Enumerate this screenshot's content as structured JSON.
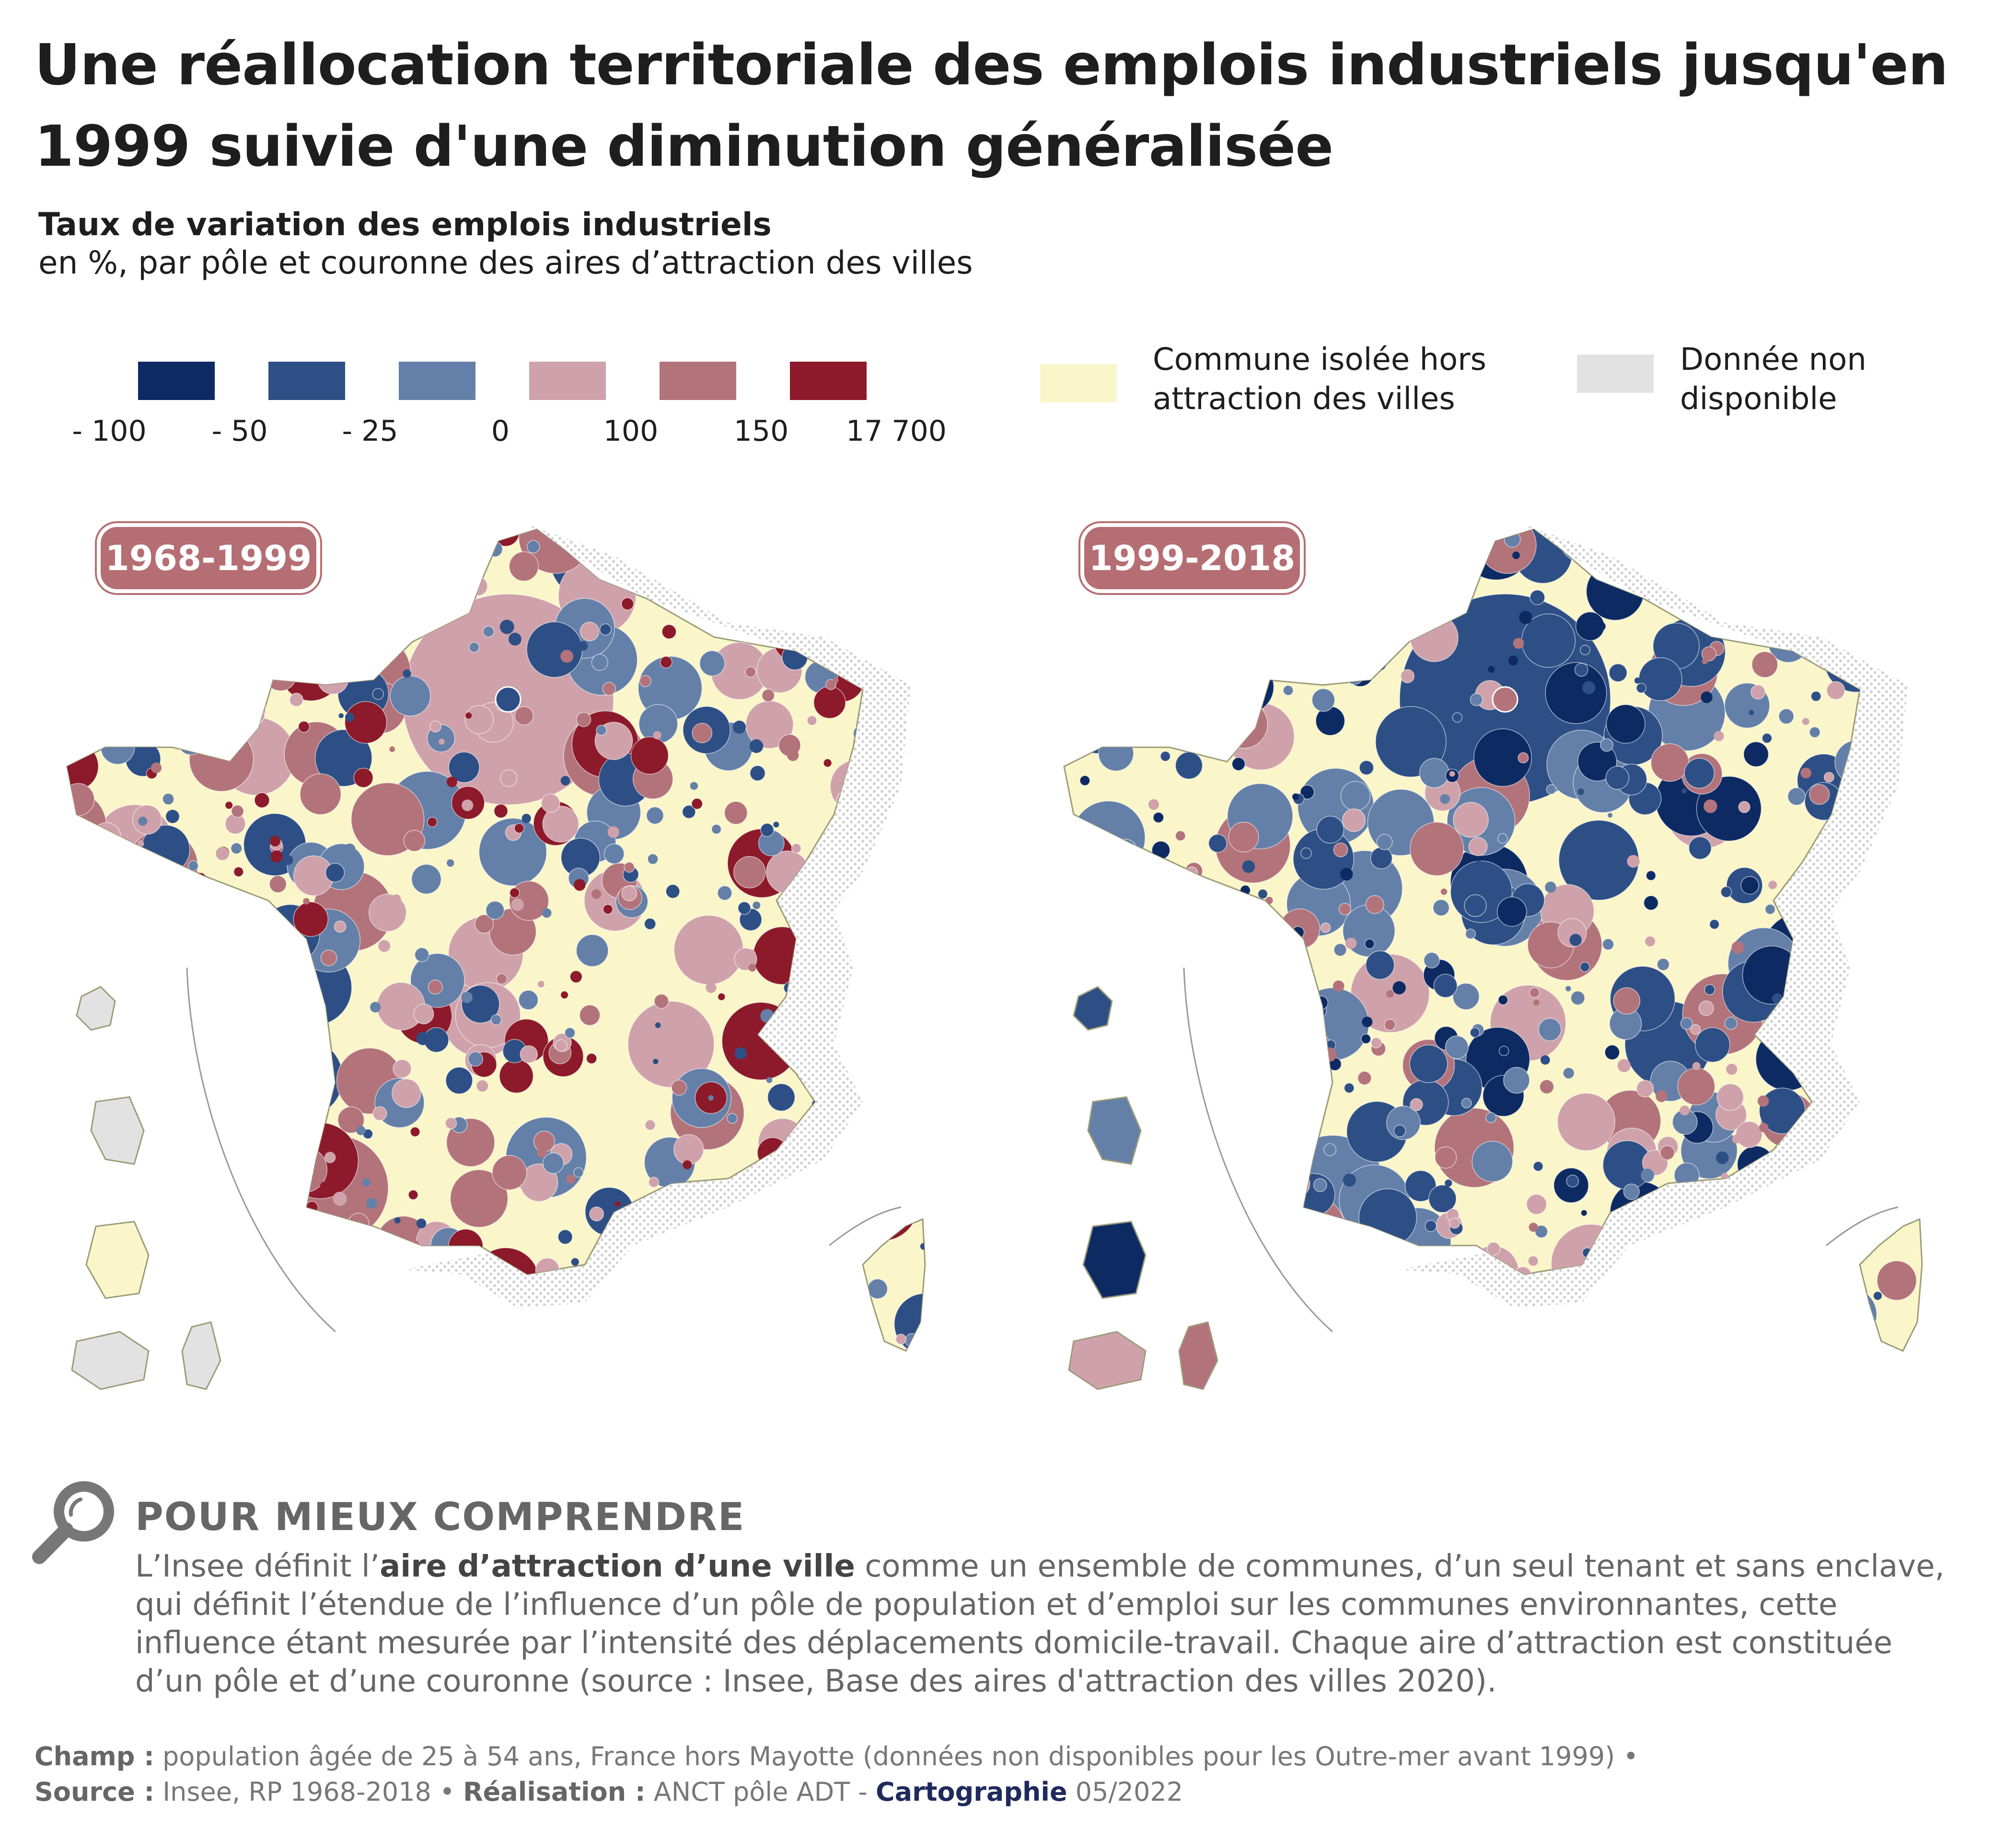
{
  "title": "Une réallocation territoriale des emplois industriels jusqu'en 1999 suivie d'une diminution généralisée",
  "subtitle_bold": "Taux de variation des emplois industriels",
  "subtitle": "en %, par pôle et couronne des aires d’attraction des villes",
  "legend": {
    "classes": [
      {
        "color": "#0d2a63"
      },
      {
        "color": "#2e4f85"
      },
      {
        "color": "#6480a8"
      },
      {
        "color": "#cfa2ab"
      },
      {
        "color": "#b3737b"
      },
      {
        "color": "#8c1a2a"
      }
    ],
    "ticks": [
      "- 100",
      "- 50",
      "- 25",
      "0",
      "100",
      "150",
      "17 700"
    ],
    "isolated_label": "Commune isolée hors attraction des villes",
    "isolated_color": "#fbf6c9",
    "na_label": "Donnée non disponible",
    "na_color": "#e2e2e2"
  },
  "maps": [
    {
      "period": "1968-1999",
      "palette": [
        "#cfa2ab",
        "#b3737b",
        "#8c1a2a",
        "#6480a8",
        "#2e4f85"
      ]
    },
    {
      "period": "1999-2018",
      "palette": [
        "#2e4f85",
        "#6480a8",
        "#0d2a63",
        "#cfa2ab",
        "#b3737b"
      ]
    }
  ],
  "understand": {
    "title": "POUR MIEUX COMPRENDRE",
    "text_before": "L’Insee définit l’",
    "text_bold": "aire d’attraction d’une ville",
    "text_after": " comme un ensemble de communes, d’un seul tenant et sans enclave, qui définit l’étendue de l’influence d’un pôle de population et d’emploi sur les communes environnantes, cette influence étant mesurée par l’intensité des déplacements domicile-travail. Chaque aire d’attraction est constituée d’un pôle et d’une couronne (source : Insee, Base des aires d'attraction des villes 2020)."
  },
  "footer": {
    "champ_label": "Champ :",
    "champ_text": " population âgée de 25 à 54 ans, France hors Mayotte (données non disponibles pour les Outre-mer avant 1999) •",
    "source_label": "Source :",
    "source_text": " Insee, RP 1968-2018 • ",
    "realisation_label": "Réalisation :",
    "realisation_text": " ANCT pôle ADT - ",
    "carto_label": "Cartographie",
    "carto_date": " 05/2022"
  }
}
